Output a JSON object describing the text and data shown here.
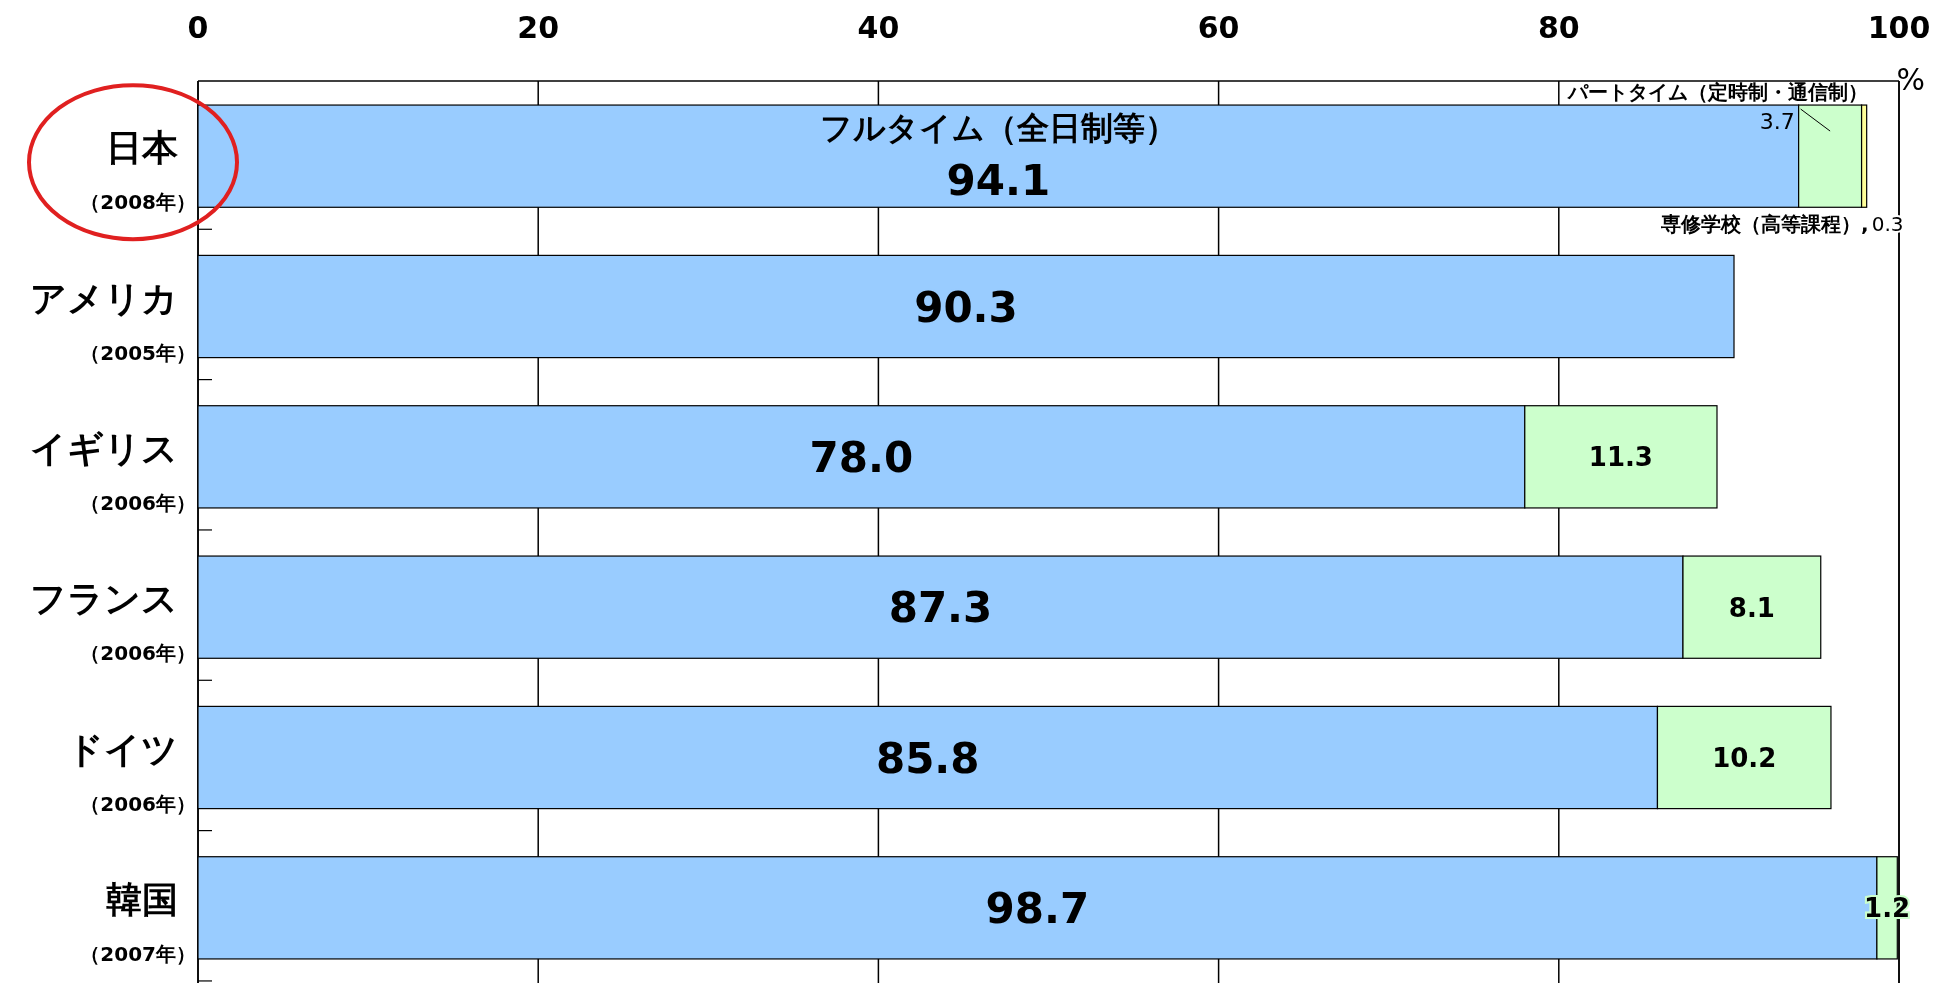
{
  "chart_data": {
    "type": "bar",
    "orientation": "horizontal",
    "stacked": true,
    "categories": [
      "日本（2008年）",
      "アメリカ（2005年）",
      "イギリス（2006年）",
      "フランス（2006年）",
      "ドイツ（2006年）",
      "韓国（2007年）"
    ],
    "series": [
      {
        "name": "フルタイム（全日制等）",
        "color": "#99ccff",
        "values": [
          94.1,
          90.3,
          78.0,
          87.3,
          85.8,
          98.7
        ],
        "value_labels": [
          "94.1",
          "90.3",
          "78.0",
          "87.3",
          "85.8",
          "98.7"
        ]
      },
      {
        "name": "パートタイム（定時制・通信制）",
        "color": "#ccffcc",
        "values": [
          3.7,
          null,
          11.3,
          8.1,
          10.2,
          1.2
        ],
        "value_labels": [
          "3.7",
          null,
          "11.3",
          "8.1",
          "10.2",
          "1.2"
        ]
      },
      {
        "name": "専修学校（高等課程）,",
        "color": "#ffff99",
        "values": [
          0.3,
          null,
          null,
          null,
          null,
          null
        ],
        "value_labels": [
          "0.3",
          null,
          null,
          null,
          null,
          null
        ]
      }
    ],
    "xlim": [
      0,
      100
    ],
    "xticks": [
      0,
      20,
      40,
      60,
      80,
      100
    ],
    "xlabel": "%",
    "grid": "x",
    "legend": false
  }
}
